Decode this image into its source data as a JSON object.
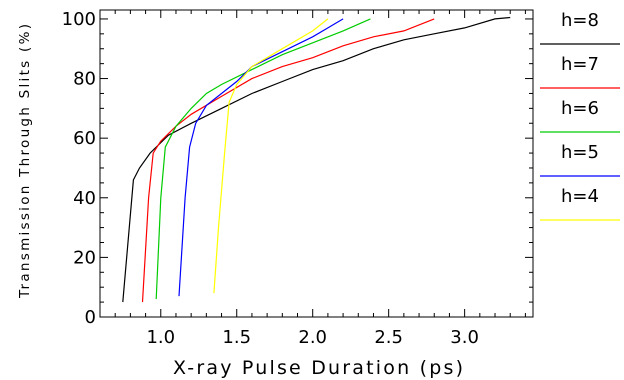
{
  "chart_data": {
    "type": "line",
    "xlabel": "X-ray Pulse Duration (ps)",
    "ylabel": "Transmission  Through  Slits  (%)",
    "xlim": [
      0.6,
      3.45
    ],
    "ylim": [
      0,
      103
    ],
    "x_ticks": [
      1.0,
      1.5,
      2.0,
      2.5,
      3.0
    ],
    "x_tick_labels": [
      "1.0",
      "1.5",
      "2.0",
      "2.5",
      "3.0"
    ],
    "y_ticks": [
      0,
      20,
      40,
      60,
      80,
      100
    ],
    "y_tick_labels": [
      "0",
      "20",
      "40",
      "60",
      "80",
      "100"
    ],
    "grid": false,
    "legend_position": "right",
    "series": [
      {
        "name": "h=8",
        "color": "#000000",
        "points": [
          [
            0.75,
            5
          ],
          [
            0.82,
            46
          ],
          [
            0.86,
            50
          ],
          [
            0.93,
            55
          ],
          [
            1.05,
            61
          ],
          [
            1.2,
            65
          ],
          [
            1.4,
            70
          ],
          [
            1.6,
            75
          ],
          [
            1.8,
            79
          ],
          [
            2.0,
            83
          ],
          [
            2.2,
            86
          ],
          [
            2.4,
            90
          ],
          [
            2.6,
            93
          ],
          [
            2.8,
            95
          ],
          [
            3.0,
            97
          ],
          [
            3.2,
            100
          ],
          [
            3.3,
            100.5
          ]
        ]
      },
      {
        "name": "h=7",
        "color": "#ff0000",
        "points": [
          [
            0.88,
            5
          ],
          [
            0.92,
            40
          ],
          [
            0.95,
            55
          ],
          [
            1.0,
            59
          ],
          [
            1.1,
            64
          ],
          [
            1.2,
            68
          ],
          [
            1.4,
            74
          ],
          [
            1.6,
            80
          ],
          [
            1.8,
            84
          ],
          [
            2.0,
            87
          ],
          [
            2.2,
            91
          ],
          [
            2.4,
            94
          ],
          [
            2.6,
            96
          ],
          [
            2.8,
            100
          ]
        ]
      },
      {
        "name": "h=6",
        "color": "#00cc00",
        "points": [
          [
            0.97,
            6
          ],
          [
            1.0,
            40
          ],
          [
            1.03,
            57
          ],
          [
            1.1,
            64
          ],
          [
            1.2,
            70
          ],
          [
            1.3,
            75
          ],
          [
            1.4,
            78
          ],
          [
            1.6,
            83
          ],
          [
            1.8,
            88
          ],
          [
            2.0,
            92
          ],
          [
            2.2,
            96
          ],
          [
            2.38,
            100
          ]
        ]
      },
      {
        "name": "h=5",
        "color": "#0000ff",
        "points": [
          [
            1.12,
            7
          ],
          [
            1.16,
            40
          ],
          [
            1.19,
            57
          ],
          [
            1.23,
            65
          ],
          [
            1.3,
            71
          ],
          [
            1.4,
            75
          ],
          [
            1.5,
            79
          ],
          [
            1.6,
            84
          ],
          [
            1.8,
            89
          ],
          [
            2.0,
            94
          ],
          [
            2.1,
            97
          ],
          [
            2.2,
            100
          ]
        ]
      },
      {
        "name": "h=4",
        "color": "#ffff00",
        "points": [
          [
            1.35,
            8
          ],
          [
            1.38,
            30
          ],
          [
            1.42,
            55
          ],
          [
            1.45,
            72
          ],
          [
            1.5,
            78
          ],
          [
            1.6,
            84
          ],
          [
            1.8,
            90
          ],
          [
            2.0,
            96
          ],
          [
            2.1,
            100
          ]
        ]
      }
    ]
  }
}
